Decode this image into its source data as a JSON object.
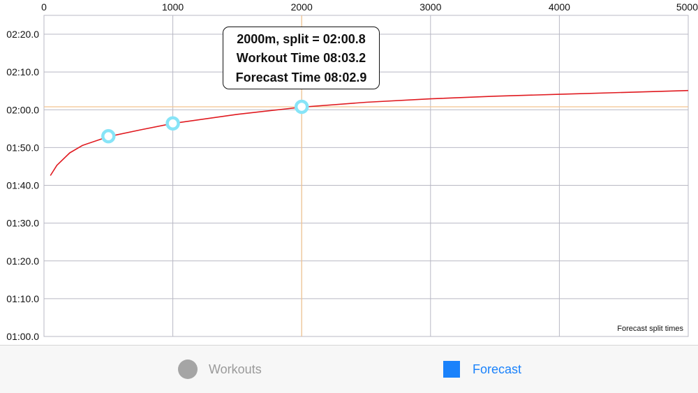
{
  "tooltip": {
    "line1": "2000m, split = 02:00.8",
    "line2": "Workout Time 08:03.2",
    "line3": "Forecast Time 08:02.9"
  },
  "chart_data": {
    "type": "line",
    "title": "",
    "xlabel": "",
    "ylabel": "",
    "xlim": [
      0,
      5000
    ],
    "ylim_seconds": [
      60,
      145
    ],
    "x_ticks": [
      0,
      1000,
      2000,
      3000,
      4000,
      5000
    ],
    "x_tick_labels": [
      "0",
      "1000",
      "2000",
      "3000",
      "4000",
      "5000"
    ],
    "y_ticks_seconds": [
      60,
      70,
      80,
      90,
      100,
      110,
      120,
      130,
      140
    ],
    "y_tick_labels": [
      "01:00.0",
      "01:10.0",
      "01:20.0",
      "01:30.0",
      "01:40.0",
      "01:50.0",
      "02:00.0",
      "02:10.0",
      "02:20.0"
    ],
    "grid": true,
    "footnote": "Forecast split times",
    "series": [
      {
        "name": "Forecast",
        "kind": "line",
        "color": "#e0191f",
        "x": [
          50,
          100,
          200,
          300,
          500,
          750,
          1000,
          1500,
          2000,
          2500,
          3000,
          3500,
          4000,
          4500,
          5000
        ],
        "y_seconds": [
          102.6,
          105.3,
          108.6,
          110.6,
          112.9,
          114.7,
          116.4,
          118.8,
          120.7,
          122.0,
          122.9,
          123.6,
          124.1,
          124.6,
          125.1
        ]
      },
      {
        "name": "Workouts",
        "kind": "points",
        "color": "#87e4f7",
        "x": [
          500,
          1000,
          2000
        ],
        "y_seconds": [
          113.0,
          116.4,
          120.8
        ]
      }
    ],
    "crosshair": {
      "x": 2000,
      "y_seconds": 120.8,
      "color": "#f3c38f"
    }
  },
  "tabs": [
    {
      "label": "Workouts",
      "icon": "circle-icon",
      "color": "#a5a5a5",
      "label_color": "#9a9a9a",
      "selected": false
    },
    {
      "label": "Forecast",
      "icon": "square-icon",
      "color": "#1a82fb",
      "label_color": "#1a82fb",
      "selected": true
    }
  ]
}
